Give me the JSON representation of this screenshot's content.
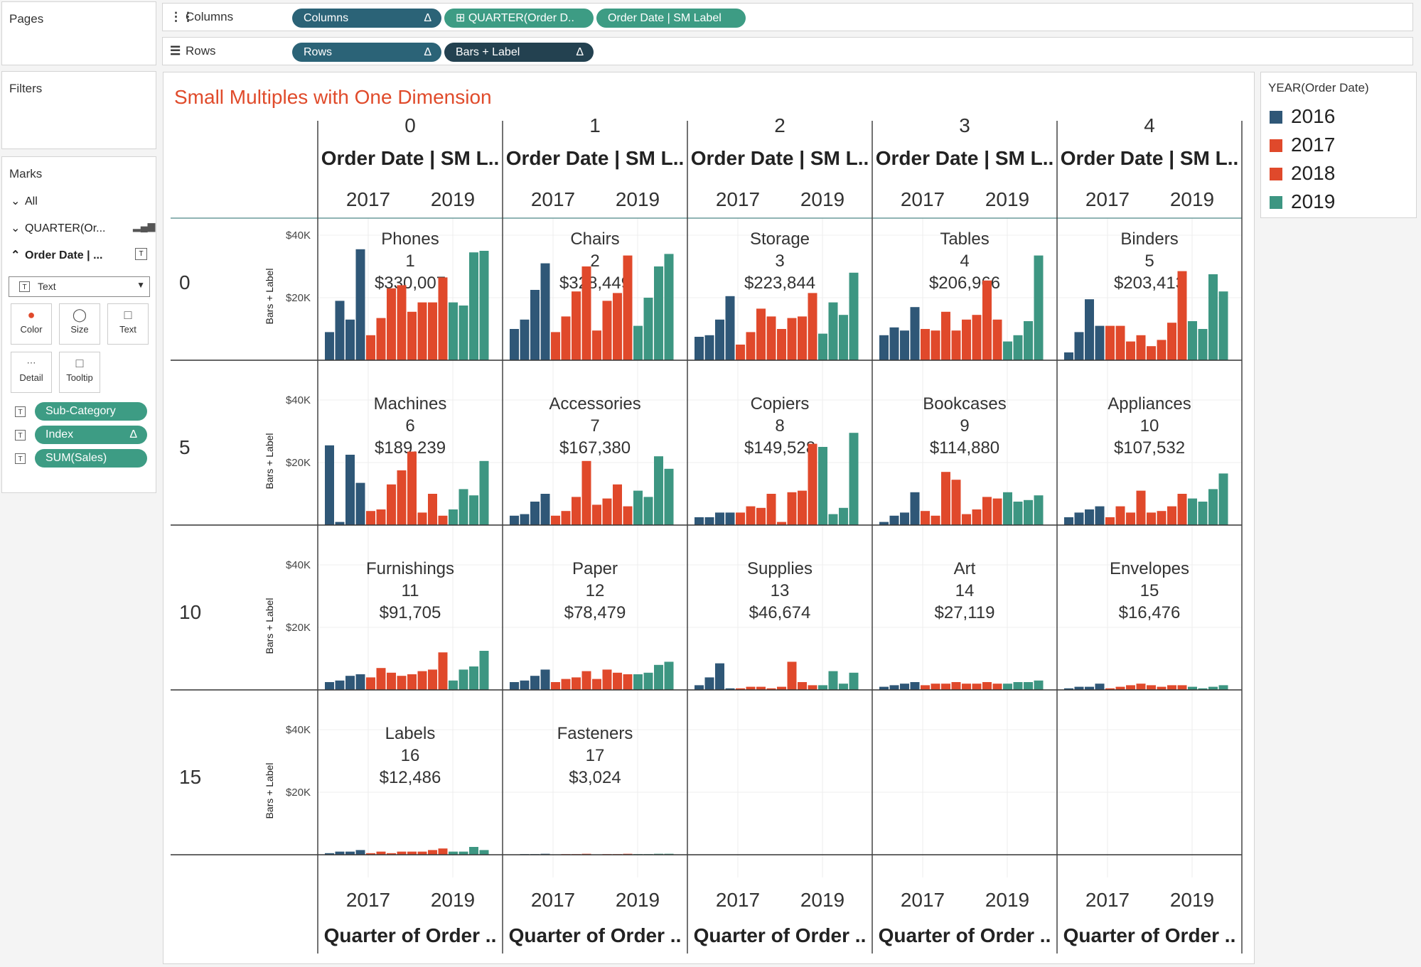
{
  "pages": {
    "title": "Pages"
  },
  "filters": {
    "title": "Filters"
  },
  "columns_shelf": {
    "label": "Columns",
    "pills": [
      "Columns",
      "⊞ QUARTER(Order D..",
      "Order Date | SM Label"
    ]
  },
  "rows_shelf": {
    "label": "Rows",
    "pills": [
      "Rows",
      "Bars + Label"
    ]
  },
  "marks": {
    "title": "Marks",
    "items": [
      "All",
      "QUARTER(Or...",
      "Order Date | ..."
    ],
    "mark_type": "Text",
    "buttons": [
      "Color",
      "Size",
      "Text",
      "Detail",
      "Tooltip"
    ],
    "fields": [
      "Sub-Category",
      "Index",
      "SUM(Sales)"
    ]
  },
  "legend": {
    "title": "YEAR(Order Date)",
    "items": [
      "2016",
      "2017",
      "2018",
      "2019"
    ],
    "colors": [
      "#2f5777",
      "#e0492b",
      "#e0492b",
      "#3d9682"
    ]
  },
  "chart_data": {
    "type": "bar",
    "title": "Small Multiples with One Dimension",
    "column_headers": [
      "0",
      "1",
      "2",
      "3",
      "4"
    ],
    "column_field": "Order Date | SM L..",
    "row_headers": [
      "0",
      "5",
      "10",
      "15"
    ],
    "y_axis_label": "Bars + Label",
    "y_ticks": [
      "$40K",
      "$20K"
    ],
    "ylim": [
      0,
      40000
    ],
    "x_ticks": [
      "2017",
      "2019"
    ],
    "x_axis_title": "Quarter of Order ..",
    "quarters_per_year": 4,
    "years": [
      "2016",
      "2017",
      "2018",
      "2019"
    ],
    "panels": [
      {
        "name": "Phones",
        "index": "1",
        "total": "$330,007",
        "values": [
          9000,
          19000,
          13000,
          35500,
          8000,
          13500,
          23000,
          24000,
          15500,
          18500,
          18500,
          26500,
          18500,
          17500,
          34500,
          35000
        ]
      },
      {
        "name": "Chairs",
        "index": "2",
        "total": "$328,449",
        "values": [
          10000,
          13000,
          22500,
          31000,
          9000,
          14000,
          22000,
          30000,
          9500,
          19000,
          21500,
          33500,
          11000,
          20000,
          30000,
          34000
        ]
      },
      {
        "name": "Storage",
        "index": "3",
        "total": "$223,844",
        "values": [
          7500,
          8000,
          13000,
          20500,
          5000,
          9000,
          16500,
          14000,
          10000,
          13500,
          14000,
          21500,
          8500,
          18500,
          14500,
          28000
        ]
      },
      {
        "name": "Tables",
        "index": "4",
        "total": "$206,966",
        "values": [
          8000,
          10500,
          9500,
          17000,
          10000,
          9500,
          15500,
          9500,
          13000,
          14500,
          25500,
          13000,
          6000,
          8000,
          12500,
          33500
        ]
      },
      {
        "name": "Binders",
        "index": "5",
        "total": "$203,413",
        "values": [
          2500,
          9000,
          19500,
          11000,
          11000,
          11000,
          6000,
          8000,
          4500,
          6500,
          12000,
          28500,
          12500,
          10000,
          27500,
          22000
        ]
      },
      {
        "name": "Machines",
        "index": "6",
        "total": "$189,239",
        "values": [
          25500,
          1000,
          22500,
          13500,
          4500,
          5000,
          13000,
          17500,
          23500,
          4000,
          10000,
          3000,
          5000,
          11500,
          9500,
          20500
        ]
      },
      {
        "name": "Accessories",
        "index": "7",
        "total": "$167,380",
        "values": [
          3000,
          3500,
          7500,
          10000,
          3000,
          4500,
          9000,
          20500,
          6500,
          8500,
          13000,
          6000,
          11000,
          9000,
          22000,
          18000
        ]
      },
      {
        "name": "Copiers",
        "index": "8",
        "total": "$149,528",
        "values": [
          2500,
          2500,
          4000,
          4000,
          4000,
          6000,
          5500,
          10000,
          1000,
          10500,
          11000,
          26000,
          25000,
          3500,
          5500,
          29500
        ]
      },
      {
        "name": "Bookcases",
        "index": "9",
        "total": "$114,880",
        "values": [
          1000,
          3000,
          4000,
          10500,
          4500,
          3000,
          17000,
          14500,
          3500,
          5000,
          9000,
          8500,
          10500,
          7500,
          8000,
          9500
        ]
      },
      {
        "name": "Appliances",
        "index": "10",
        "total": "$107,532",
        "values": [
          2500,
          4000,
          5000,
          6000,
          2500,
          6000,
          4000,
          11000,
          4000,
          4500,
          6000,
          10000,
          8500,
          7500,
          11500,
          16500
        ]
      },
      {
        "name": "Furnishings",
        "index": "11",
        "total": "$91,705",
        "values": [
          2500,
          3000,
          4500,
          5000,
          4000,
          7000,
          5500,
          4500,
          5000,
          6000,
          6500,
          12000,
          3000,
          6500,
          7500,
          12500
        ]
      },
      {
        "name": "Paper",
        "index": "12",
        "total": "$78,479",
        "values": [
          2500,
          3000,
          4500,
          6500,
          2500,
          3500,
          4000,
          6000,
          3500,
          6500,
          5500,
          5000,
          5000,
          5500,
          8000,
          9000
        ]
      },
      {
        "name": "Supplies",
        "index": "13",
        "total": "$46,674",
        "values": [
          1500,
          4000,
          8500,
          500,
          500,
          1000,
          1000,
          500,
          1000,
          9000,
          2500,
          1500,
          1500,
          6000,
          2000,
          5500
        ]
      },
      {
        "name": "Art",
        "index": "14",
        "total": "$27,119",
        "values": [
          1000,
          1500,
          2000,
          2500,
          1500,
          2000,
          2000,
          2500,
          2000,
          2000,
          2500,
          2000,
          2000,
          2500,
          2500,
          3000
        ]
      },
      {
        "name": "Envelopes",
        "index": "15",
        "total": "$16,476",
        "values": [
          500,
          1000,
          1000,
          2000,
          500,
          1000,
          1500,
          2000,
          1500,
          1000,
          1500,
          1500,
          1000,
          500,
          1000,
          1500
        ]
      },
      {
        "name": "Labels",
        "index": "16",
        "total": "$12,486",
        "values": [
          500,
          1000,
          1000,
          1500,
          500,
          1000,
          500,
          1000,
          1000,
          1000,
          1500,
          2000,
          1000,
          1000,
          2500,
          1500
        ]
      },
      {
        "name": "Fasteners",
        "index": "17",
        "total": "$3,024",
        "values": [
          100,
          200,
          200,
          300,
          100,
          200,
          200,
          300,
          100,
          200,
          200,
          300,
          200,
          200,
          300,
          300
        ]
      }
    ]
  }
}
